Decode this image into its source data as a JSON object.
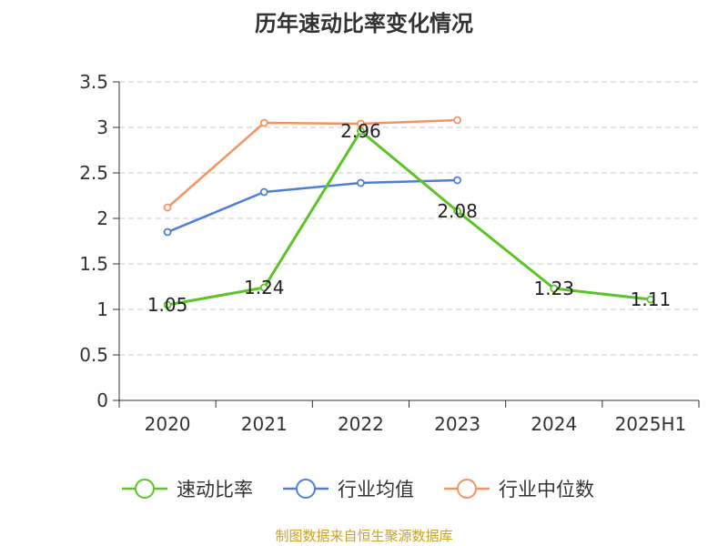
{
  "chart_data": {
    "type": "line",
    "title": "历年速动比率变化情况",
    "categories": [
      "2020",
      "2021",
      "2022",
      "2023",
      "2024",
      "2025H1"
    ],
    "ylim": [
      0,
      3.5
    ],
    "yticks": [
      "0",
      "0.5",
      "1",
      "1.5",
      "2",
      "2.5",
      "3",
      "3.5"
    ],
    "grid": true,
    "legend_position": "bottom",
    "series": [
      {
        "name": "速动比率",
        "color": "#5cc424",
        "values": [
          1.05,
          1.24,
          2.96,
          2.08,
          1.23,
          1.11
        ],
        "labels": [
          "1.05",
          "1.24",
          "2.96",
          "2.08",
          "1.23",
          "1.11"
        ]
      },
      {
        "name": "行业均值",
        "color": "#4e7fd8",
        "values": [
          1.85,
          2.29,
          2.39,
          2.42,
          null,
          null
        ]
      },
      {
        "name": "行业中位数",
        "color": "#f59361",
        "values": [
          2.12,
          3.05,
          3.04,
          3.08,
          null,
          null
        ]
      }
    ]
  },
  "footer": "制图数据来自恒生聚源数据库"
}
